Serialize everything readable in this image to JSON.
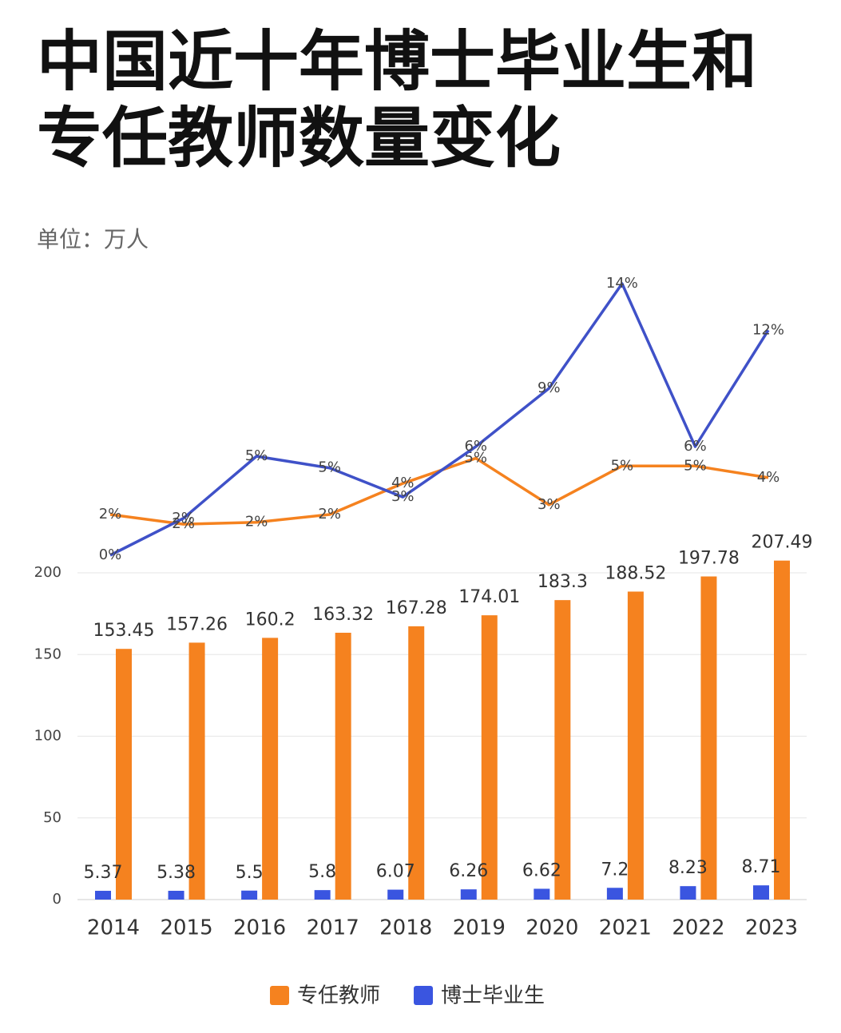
{
  "chart_data": {
    "type": "bar",
    "title": "中国近十年博士毕业生和专任教师数量变化",
    "subtitle": "单位：万人",
    "categories": [
      "2014",
      "2015",
      "2016",
      "2017",
      "2018",
      "2019",
      "2020",
      "2021",
      "2022",
      "2023"
    ],
    "series": [
      {
        "name": "专任教师",
        "color": "#f5821f",
        "values": [
          153.45,
          157.26,
          160.2,
          163.32,
          167.28,
          174.01,
          183.3,
          188.52,
          197.78,
          207.49
        ]
      },
      {
        "name": "博士毕业生",
        "color": "#3a55e0",
        "values": [
          5.37,
          5.38,
          5.5,
          5.8,
          6.07,
          6.26,
          6.62,
          7.2,
          8.23,
          8.71
        ]
      }
    ],
    "line_series": [
      {
        "color": "#f5821f",
        "axis": "y2",
        "values": [
          2.1,
          1.6,
          1.7,
          2.1,
          3.7,
          5.0,
          2.6,
          4.6,
          4.6,
          4.0
        ],
        "value_labels": [
          "2%",
          "2%",
          "2%",
          "2%",
          "4%",
          "5%",
          "3%",
          "5%",
          "5%",
          "4%"
        ]
      },
      {
        "color": "#3f51c8",
        "axis": "y2",
        "values": [
          0.0,
          1.9,
          5.1,
          4.5,
          3.0,
          5.6,
          8.6,
          14.0,
          5.6,
          11.6
        ],
        "value_labels": [
          "0%",
          "2%",
          "5%",
          "5%",
          "3%",
          "6%",
          "9%",
          "14%",
          "6%",
          "12%"
        ]
      }
    ],
    "ylim": [
      0,
      200
    ],
    "yticks": [
      0,
      50,
      100,
      150,
      200
    ],
    "y2lim": [
      0,
      14
    ],
    "grid": true
  }
}
